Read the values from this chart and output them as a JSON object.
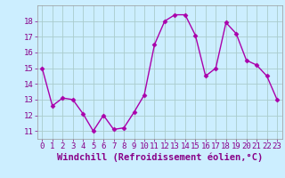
{
  "x": [
    0,
    1,
    2,
    3,
    4,
    5,
    6,
    7,
    8,
    9,
    10,
    11,
    12,
    13,
    14,
    15,
    16,
    17,
    18,
    19,
    20,
    21,
    22,
    23
  ],
  "y": [
    15,
    12.6,
    13.1,
    13.0,
    12.1,
    11.0,
    12.0,
    11.1,
    11.2,
    12.2,
    13.3,
    16.5,
    18.0,
    18.4,
    18.4,
    17.1,
    14.5,
    15.0,
    17.9,
    17.2,
    15.5,
    15.2,
    14.5,
    13.0
  ],
  "line_color": "#aa00aa",
  "marker_color": "#aa00aa",
  "bg_color": "#cceeff",
  "grid_color": "#aacccc",
  "xlabel": "Windchill (Refroidissement éolien,°C)",
  "yticks": [
    11,
    12,
    13,
    14,
    15,
    16,
    17,
    18
  ],
  "xticks": [
    0,
    1,
    2,
    3,
    4,
    5,
    6,
    7,
    8,
    9,
    10,
    11,
    12,
    13,
    14,
    15,
    16,
    17,
    18,
    19,
    20,
    21,
    22,
    23
  ],
  "ylim": [
    10.5,
    19.0
  ],
  "xlim": [
    -0.5,
    23.5
  ],
  "xlabel_fontsize": 7.5,
  "tick_fontsize": 6.5,
  "tick_color": "#880088",
  "line_width": 1.0,
  "marker_size": 2.5
}
